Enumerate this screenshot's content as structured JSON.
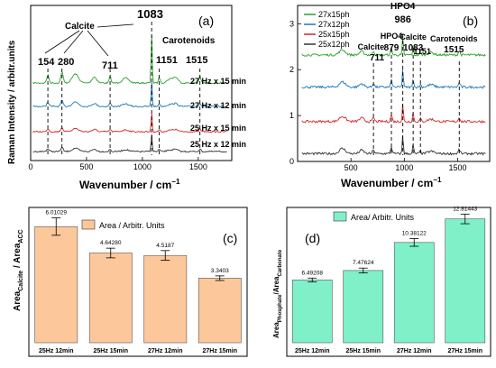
{
  "chart_data": [
    {
      "panel": "(a)",
      "type": "line",
      "xlabel": "Wavenumber / cm",
      "xlabel_sup": "−1",
      "ylabel": "Raman Intensity / arbitr.units",
      "xlim": [
        0,
        1800
      ],
      "xticks": [
        "0",
        "500",
        "1000",
        "1500"
      ],
      "series": [
        {
          "name": "27 Hz x 15 min",
          "color": "#2ca02c",
          "offset": 3.0
        },
        {
          "name": "27 Hz x 12 min",
          "color": "#1f77b4",
          "offset": 2.0
        },
        {
          "name": "25 Hz x 15 min",
          "color": "#d62728",
          "offset": 1.0
        },
        {
          "name": "25 Hz x 12 min",
          "color": "#333333",
          "offset": 0.0
        }
      ],
      "peaks": [
        154,
        280,
        711,
        1083,
        1151,
        1515
      ],
      "peak_labels": [
        "154",
        "280",
        "711",
        "1083",
        "1151",
        "1515"
      ],
      "group_labels": {
        "calcite": "Calcite",
        "carotenoids": "Carotenoids"
      }
    },
    {
      "panel": "(b)",
      "type": "line",
      "xlabel": "Wavenumber / cm",
      "xlabel_sup": "−1",
      "xlim": [
        0,
        1800
      ],
      "ylim": [
        0,
        3.4
      ],
      "xticks": [
        "500",
        "1000",
        "1500"
      ],
      "yticks": [
        "0",
        "1",
        "2",
        "3"
      ],
      "series": [
        {
          "name": "27x15ph",
          "color": "#2ca02c",
          "offset": 2.2
        },
        {
          "name": "27x12ph",
          "color": "#1f77b4",
          "offset": 1.5
        },
        {
          "name": "25x15ph",
          "color": "#d62728",
          "offset": 0.75
        },
        {
          "name": "25x12ph",
          "color": "#333333",
          "offset": 0.05
        }
      ],
      "peaks": [
        711,
        879,
        986,
        1083,
        1151,
        1515
      ],
      "annotations": [
        {
          "lines": [
            "Calcite",
            "711"
          ]
        },
        {
          "lines": [
            "HPO4",
            "879"
          ]
        },
        {
          "lines": [
            "HPO4",
            "986"
          ]
        },
        {
          "lines": [
            "Calcite",
            "1083"
          ]
        },
        {
          "lines": [
            "1151"
          ]
        },
        {
          "lines": [
            "Carotenoids",
            "1515"
          ]
        }
      ]
    },
    {
      "panel": "(c)",
      "type": "bar",
      "categories": [
        "25Hz 12min",
        "25Hz 15min",
        "27Hz 12min",
        "27Hz 15min"
      ],
      "values": [
        6.01029,
        4.6428,
        4.5187,
        3.3403
      ],
      "value_labels": [
        "6.01029",
        "4.64280",
        "4.5187",
        "3.3403"
      ],
      "errors": [
        0.45,
        0.25,
        0.25,
        0.12
      ],
      "legend": "Area / Arbitr. Units",
      "ylabel_main": "Area",
      "ylabel_sub1": "Calcite",
      "ylabel_mid": " / Area",
      "ylabel_sub2": "ACC",
      "ylim": [
        0,
        7
      ],
      "color": "#fcc89b"
    },
    {
      "panel": "(d)",
      "type": "bar",
      "categories": [
        "25Hz 12min",
        "25Hz 15min",
        "27Hz  12min",
        "27Hz 15min"
      ],
      "values": [
        6.49208,
        7.47624,
        10.38122,
        12.81443
      ],
      "value_labels": [
        "6.49208",
        "7.47624",
        "10.38122",
        "12.81443"
      ],
      "errors": [
        0.2,
        0.25,
        0.4,
        0.5
      ],
      "legend": "Area/ Arbitr. Units",
      "ylabel_main": "Area",
      "ylabel_sub1": "Phosphate",
      "ylabel_mid": "/Area",
      "ylabel_sub2": "Carbonate",
      "ylim": [
        0,
        14
      ],
      "color": "#7ff0c8"
    }
  ]
}
